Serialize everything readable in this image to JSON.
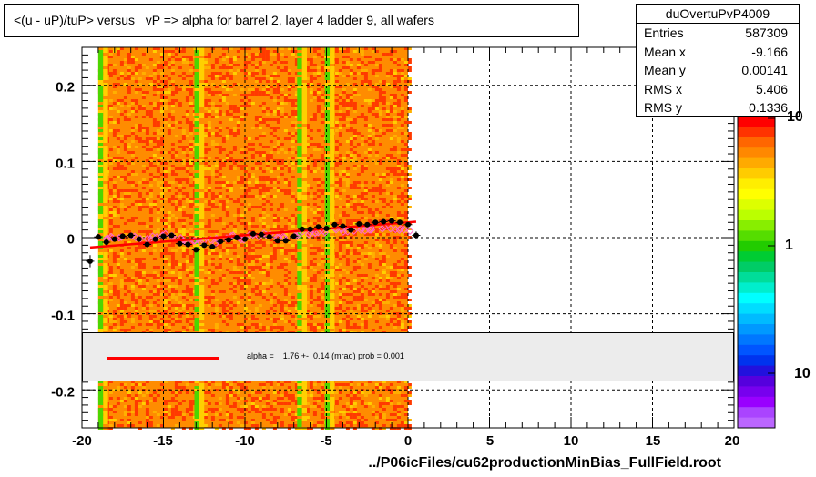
{
  "title": "<(u - uP)/tuP> versus   vP => alpha for barrel 2, layer 4 ladder 9, all wafers",
  "stats": {
    "name": "duOvertuPvP4009",
    "rows": [
      {
        "key": "Entries",
        "value": "587309"
      },
      {
        "key": "Mean x",
        "value": "-9.166"
      },
      {
        "key": "Mean y",
        "value": "0.00141"
      },
      {
        "key": "RMS x",
        "value": "5.406"
      },
      {
        "key": "RMS y",
        "value": "0.1336"
      }
    ]
  },
  "legend": {
    "text": "alpha =    1.76 +-  0.14 (mrad) prob = 0.001",
    "line_color": "#ff0000"
  },
  "xlabel": "../P06icFiles/cu62productionMinBias_FullField.root",
  "colorbar": {
    "labels": [
      "10",
      "1",
      "10"
    ]
  },
  "chart_data": {
    "type": "heatmap",
    "xlim": [
      -20,
      20
    ],
    "ylim": [
      -0.25,
      0.25
    ],
    "xticks": [
      -20,
      -15,
      -10,
      -5,
      0,
      5,
      10,
      15,
      20
    ],
    "xtick_labels": [
      "-20",
      "-15",
      "-10",
      "-5",
      "0",
      "5",
      "10",
      "15",
      "20"
    ],
    "yticks": [
      0.2,
      0.1,
      0,
      -0.1,
      -0.2
    ],
    "ytick_labels": [
      "0.2",
      "0.1",
      "0",
      "-0.1",
      "-0.2"
    ],
    "grid": true,
    "z_scale": "log",
    "heatmap_x_range": [
      -19.0,
      0.0
    ],
    "colors": {
      "background_orange": "#ff8c00",
      "red": "#ff3a00",
      "yellow": "#ffd000",
      "green": "#4cd600",
      "fit_line": "#ff0000",
      "profile": "#000000",
      "open_markers": "#ff66cc"
    },
    "profile": {
      "x": [
        -19.5,
        -19,
        -18.5,
        -18,
        -17.5,
        -17,
        -16.5,
        -16,
        -15.5,
        -15,
        -14.5,
        -14,
        -13.5,
        -13,
        -12.5,
        -12,
        -11.5,
        -11,
        -10.5,
        -10,
        -9.5,
        -9,
        -8.5,
        -8,
        -7.5,
        -7,
        -6.5,
        -6,
        -5.5,
        -5,
        -4.5,
        -4,
        -3.5,
        -3,
        -2.5,
        -2,
        -1.5,
        -1,
        -0.5,
        0,
        0.5
      ],
      "y": [
        -0.031,
        0.001,
        -0.006,
        -0.002,
        0.002,
        0.003,
        -0.002,
        -0.009,
        -0.002,
        0.002,
        0.003,
        -0.008,
        -0.009,
        -0.016,
        -0.01,
        -0.012,
        -0.005,
        -0.003,
        0.0,
        -0.002,
        0.005,
        0.004,
        0.001,
        -0.004,
        -0.004,
        0.002,
        0.011,
        0.011,
        0.014,
        0.012,
        0.017,
        0.015,
        0.01,
        0.018,
        0.017,
        0.02,
        0.021,
        0.022,
        0.02,
        0.017,
        0.003
      ],
      "yerr": [
        0.008,
        0.004,
        0.004,
        0.003,
        0.003,
        0.003,
        0.003,
        0.003,
        0.003,
        0.003,
        0.003,
        0.003,
        0.003,
        0.003,
        0.003,
        0.003,
        0.003,
        0.003,
        0.003,
        0.003,
        0.003,
        0.003,
        0.003,
        0.003,
        0.003,
        0.003,
        0.003,
        0.003,
        0.003,
        0.003,
        0.003,
        0.003,
        0.003,
        0.003,
        0.003,
        0.003,
        0.003,
        0.003,
        0.003,
        0.003,
        0.005
      ]
    },
    "fit_line": {
      "x": [
        -19.5,
        0.5
      ],
      "y": [
        -0.013,
        0.021
      ]
    }
  }
}
